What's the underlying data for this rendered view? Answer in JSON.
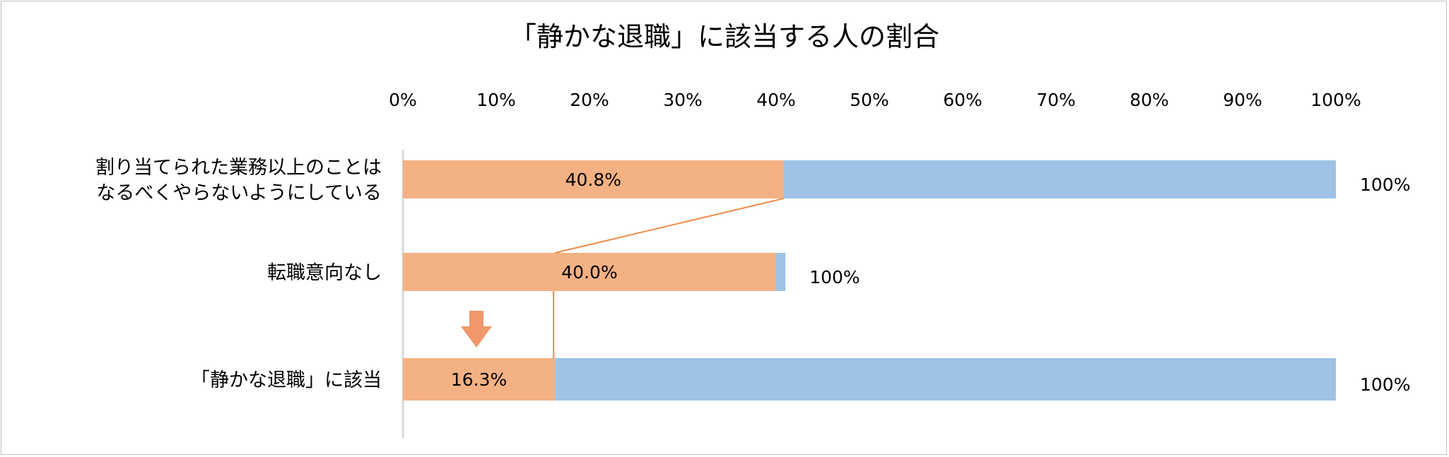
{
  "chart_data": {
    "type": "bar",
    "orientation": "horizontal",
    "stacked": true,
    "title": "「静かな退職」に該当する人の割合",
    "xlim": [
      0,
      100
    ],
    "x_ticks": [
      "0%",
      "10%",
      "20%",
      "30%",
      "40%",
      "50%",
      "60%",
      "70%",
      "80%",
      "90%",
      "100%"
    ],
    "categories": [
      [
        "割り当てられた業務以上のことは",
        "なるべくやらないようにしている"
      ],
      [
        "転職意向なし"
      ],
      [
        "「静かな退職」に該当"
      ]
    ],
    "highlighted_values": [
      40.8,
      40.0,
      16.3
    ],
    "highlighted_labels": [
      "40.8%",
      "40.0%",
      "16.3%"
    ],
    "bar_totals": [
      100,
      41,
      100
    ],
    "total_labels": [
      "100%",
      "100%",
      "100%"
    ],
    "grid": false,
    "legend": "none",
    "colors": {
      "highlighted": "#f4b183",
      "base": "#9dc3e6",
      "connector": "#f08c4a",
      "axis": "#d9d9d9"
    },
    "annotations": {
      "arrow": "down-arrow-icon"
    }
  }
}
